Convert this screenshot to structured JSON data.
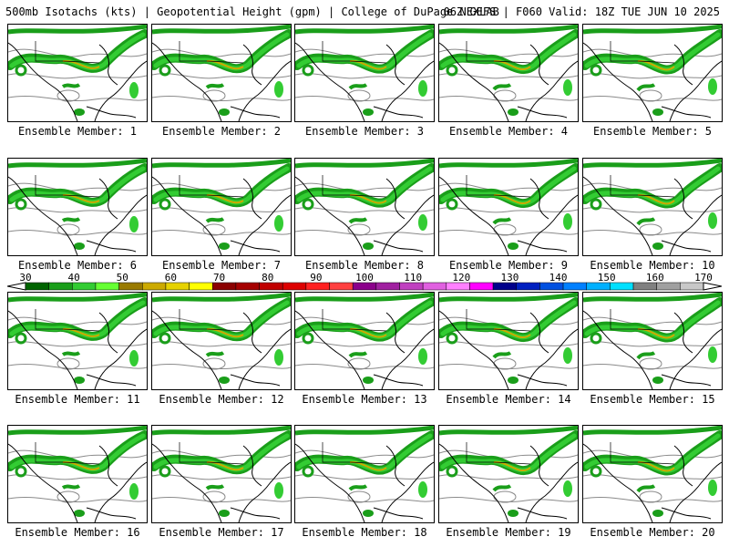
{
  "header": {
    "left": "500mb Isotachs (kts) | Geopotential Height (gpm) | College of DuPage NEXLAB",
    "right": "06Z GEFS | F060 Valid: 18Z TUE JUN 10 2025"
  },
  "panels": [
    {
      "label": "Ensemble Member: 1"
    },
    {
      "label": "Ensemble Member: 2"
    },
    {
      "label": "Ensemble Member: 3"
    },
    {
      "label": "Ensemble Member: 4"
    },
    {
      "label": "Ensemble Member: 5"
    },
    {
      "label": "Ensemble Member: 6"
    },
    {
      "label": "Ensemble Member: 7"
    },
    {
      "label": "Ensemble Member: 8"
    },
    {
      "label": "Ensemble Member: 9"
    },
    {
      "label": "Ensemble Member: 10"
    },
    {
      "label": "Ensemble Member: 11"
    },
    {
      "label": "Ensemble Member: 12"
    },
    {
      "label": "Ensemble Member: 13"
    },
    {
      "label": "Ensemble Member: 14"
    },
    {
      "label": "Ensemble Member: 15"
    },
    {
      "label": "Ensemble Member: 16"
    },
    {
      "label": "Ensemble Member: 17"
    },
    {
      "label": "Ensemble Member: 18"
    },
    {
      "label": "Ensemble Member: 19"
    },
    {
      "label": "Ensemble Member: 20"
    }
  ],
  "colorbar": {
    "tick_labels": [
      "30",
      "40",
      "50",
      "60",
      "70",
      "80",
      "90",
      "100",
      "110",
      "120",
      "130",
      "140",
      "150",
      "160",
      "170"
    ],
    "colors": [
      "#006400",
      "#1a9e1a",
      "#33cc33",
      "#66ff33",
      "#997a00",
      "#ccaa00",
      "#e6d200",
      "#ffff00",
      "#8b0000",
      "#a50000",
      "#c00000",
      "#dd0000",
      "#ff2020",
      "#ff4040",
      "#8b008b",
      "#a020a0",
      "#c040c0",
      "#e060e0",
      "#ff80ff",
      "#ff00ff",
      "#00008b",
      "#0020c0",
      "#0050e0",
      "#0080ff",
      "#00b0ff",
      "#00e0ff",
      "#808080",
      "#a0a0a0",
      "#c8c8c8"
    ]
  }
}
